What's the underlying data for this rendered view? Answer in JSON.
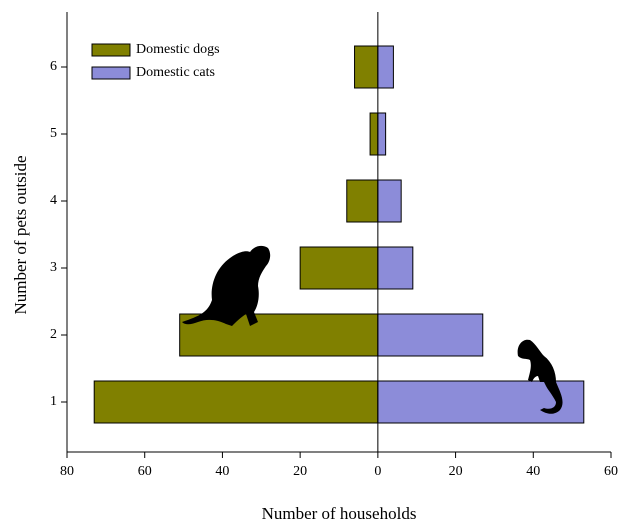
{
  "chart_data": {
    "type": "bar",
    "orientation": "horizontal",
    "x_label": "Number of households",
    "y_label": "Number of pets outside",
    "categories": [
      "1",
      "2",
      "3",
      "4",
      "5",
      "6"
    ],
    "series": [
      {
        "name": "Domestic dogs",
        "color": "#808000",
        "values": [
          -73,
          -51,
          -20,
          -8,
          -2,
          -6
        ]
      },
      {
        "name": "Domestic cats",
        "color": "#8c8cd9",
        "values": [
          53,
          27,
          9,
          6,
          2,
          4
        ]
      }
    ],
    "xlim": [
      -80,
      60
    ],
    "xticks": [
      {
        "value": -80,
        "label": "80"
      },
      {
        "value": -60,
        "label": "60"
      },
      {
        "value": -40,
        "label": "40"
      },
      {
        "value": -20,
        "label": "20"
      },
      0,
      20,
      40,
      60
    ],
    "legend": "upper left"
  }
}
